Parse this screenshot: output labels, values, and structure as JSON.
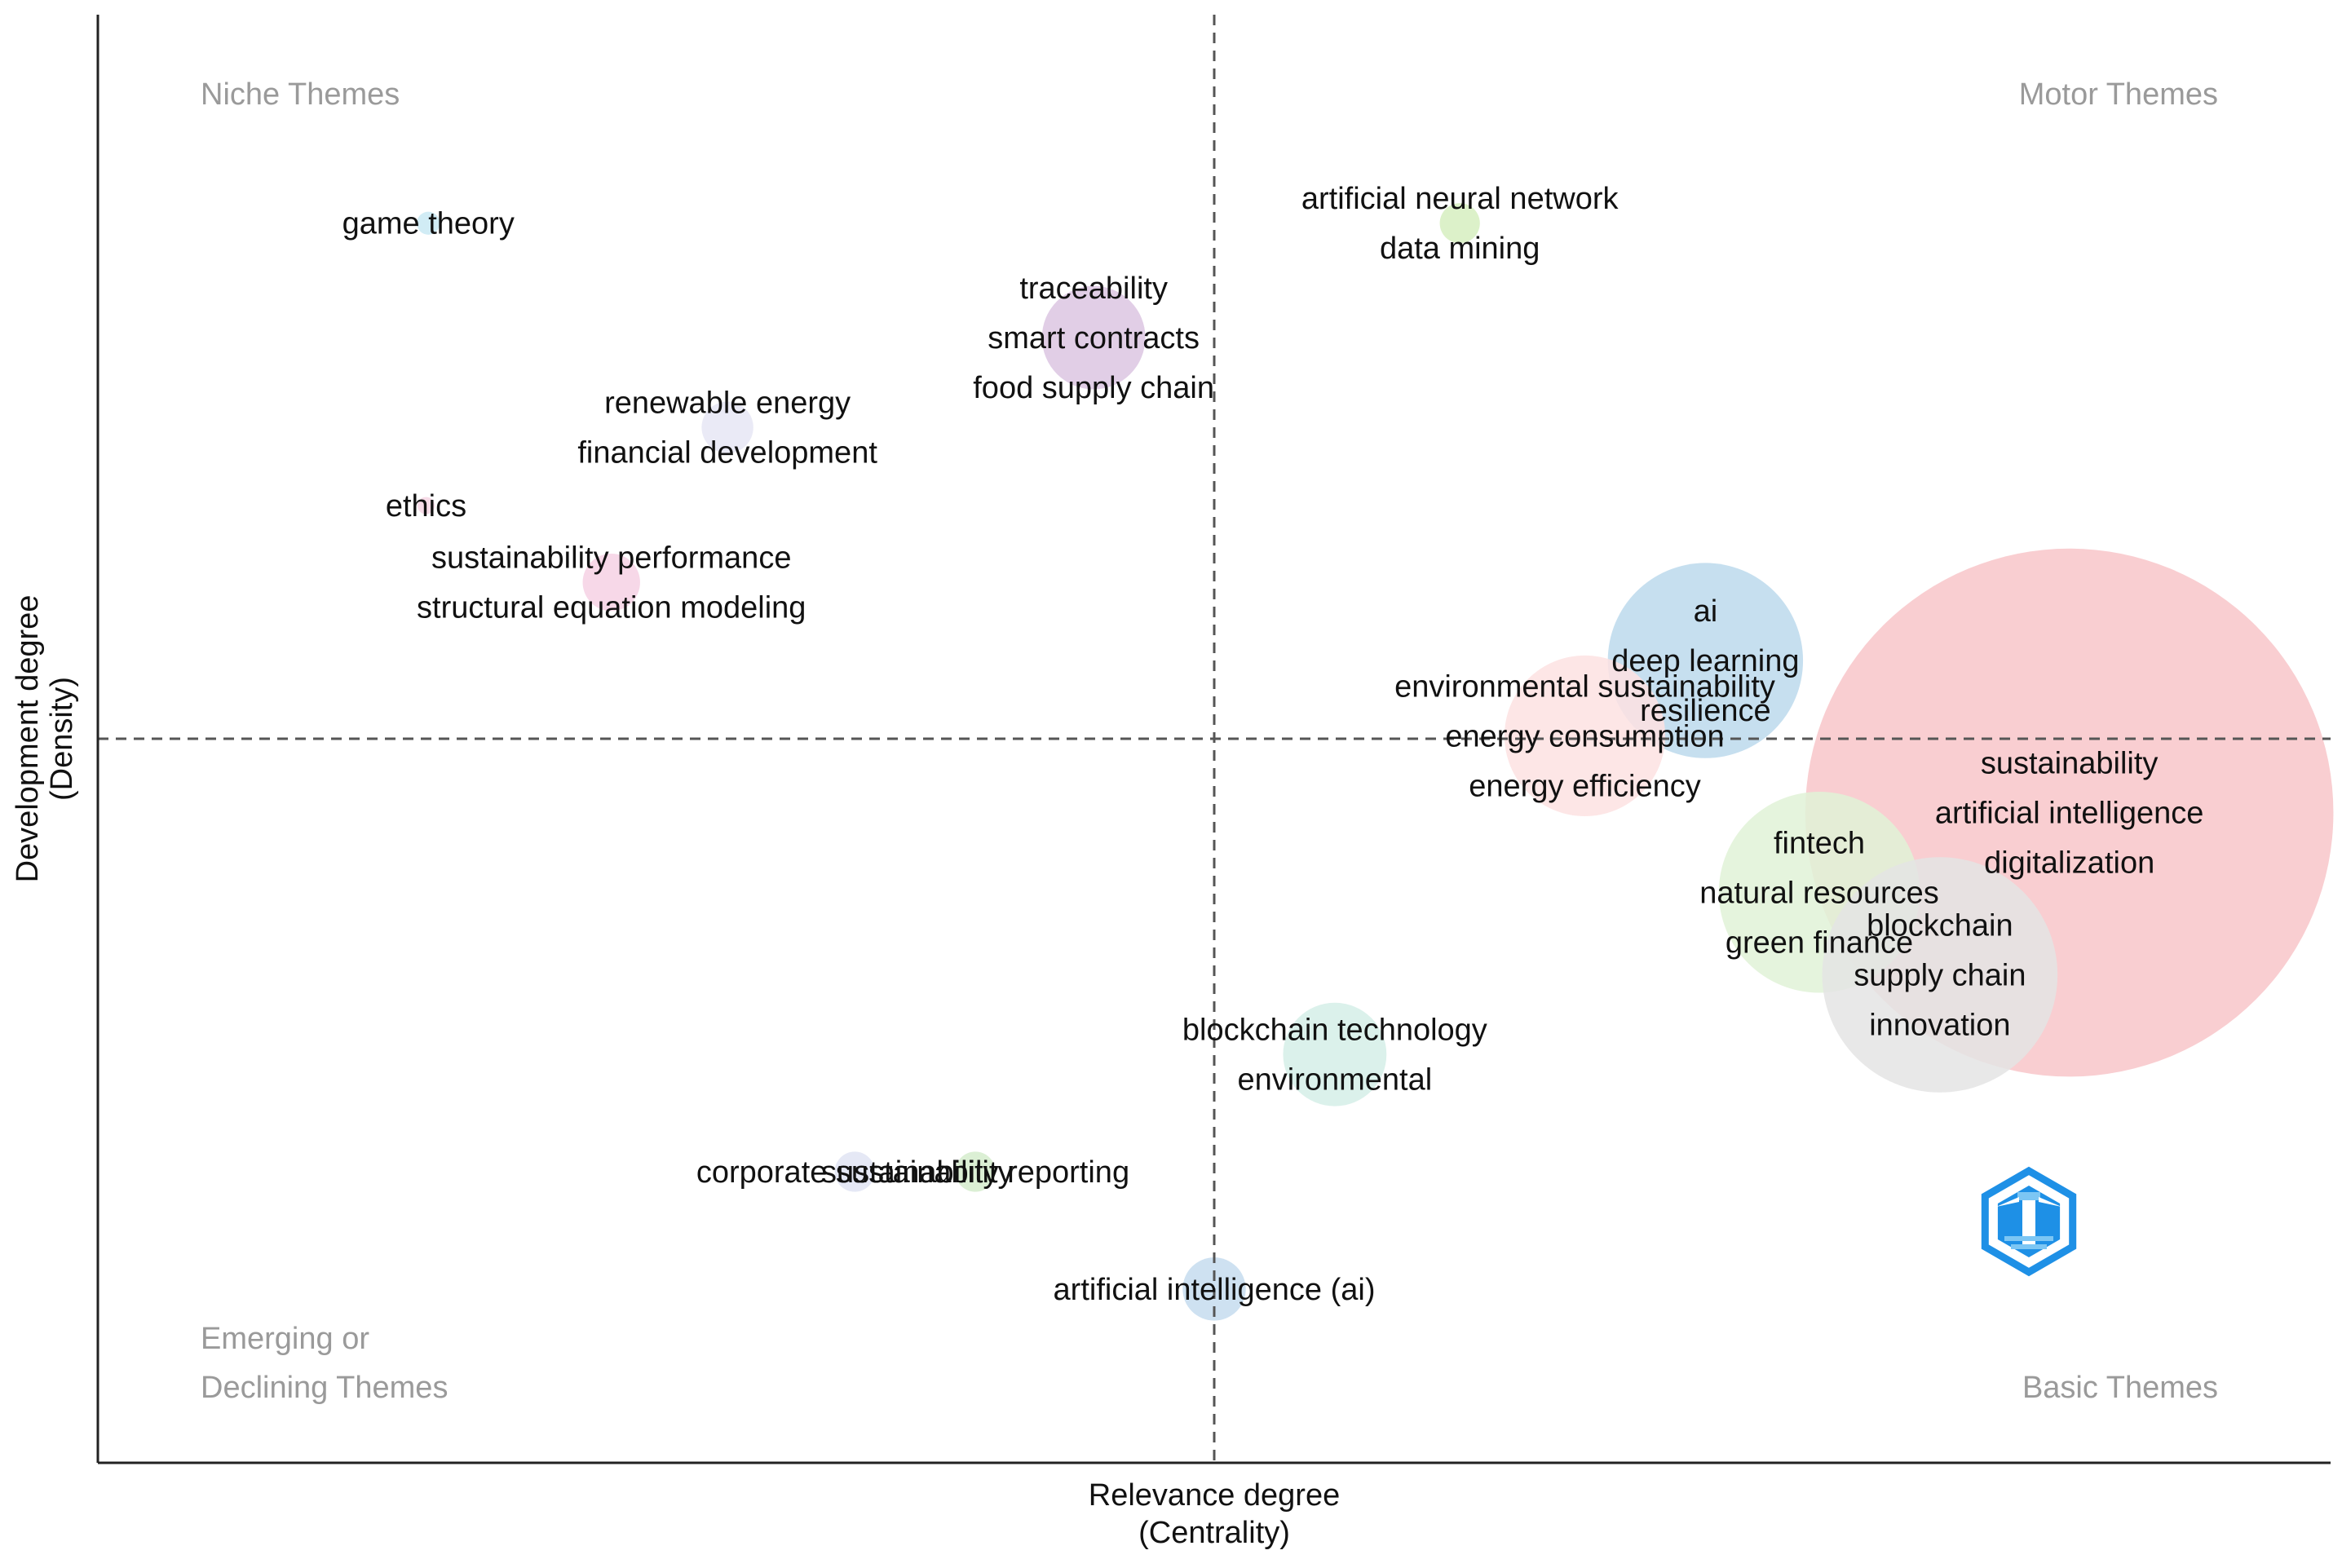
{
  "chart_data": {
    "type": "scatter",
    "subtype": "thematic-map",
    "xlabel": [
      "Relevance degree",
      "(Centrality)"
    ],
    "ylabel": [
      "Development degree",
      "(Density)"
    ],
    "xlim": [
      0,
      100
    ],
    "ylim": [
      0,
      100
    ],
    "divider_x": 50,
    "divider_y": 50,
    "grid": false,
    "quadrants": {
      "top_left": [
        "Niche Themes"
      ],
      "top_right": [
        "Motor Themes"
      ],
      "bottom_left": [
        "Emerging or",
        "Declining Themes"
      ],
      "bottom_right": [
        "Basic Themes"
      ]
    },
    "clusters": [
      {
        "id": "game-theory",
        "x": 14.8,
        "y": 85.6,
        "size": 0.4,
        "color": "#c9e9f3",
        "labels": [
          "game theory"
        ]
      },
      {
        "id": "artificial-neural-network",
        "x": 61.0,
        "y": 85.6,
        "size": 0.7,
        "color": "#d6efc0",
        "labels": [
          "artificial neural network",
          "data mining"
        ]
      },
      {
        "id": "traceability",
        "x": 44.6,
        "y": 77.7,
        "size": 1.8,
        "color": "#dcc6e2",
        "labels": [
          "traceability",
          "smart contracts",
          "food supply chain"
        ]
      },
      {
        "id": "renewable-energy",
        "x": 28.2,
        "y": 71.5,
        "size": 0.9,
        "color": "#e6e6f5",
        "labels": [
          "renewable energy",
          "financial development"
        ]
      },
      {
        "id": "ethics",
        "x": 14.7,
        "y": 66.1,
        "size": 0.3,
        "color": "#f6d6e4",
        "labels": [
          "ethics"
        ]
      },
      {
        "id": "sustainability-performance",
        "x": 23.0,
        "y": 60.8,
        "size": 1.0,
        "color": "#f6d1e4",
        "labels": [
          "sustainability performance",
          "structural equation modeling"
        ]
      },
      {
        "id": "ai",
        "x": 72.0,
        "y": 55.4,
        "size": 3.4,
        "color": "#bcd9ec",
        "labels": [
          "ai",
          "deep learning",
          "resilience"
        ]
      },
      {
        "id": "environmental-sustainability",
        "x": 66.6,
        "y": 50.2,
        "size": 2.8,
        "color": "#fde2e2",
        "labels": [
          "environmental sustainability",
          "energy consumption",
          "energy efficiency"
        ]
      },
      {
        "id": "sustainability",
        "x": 88.3,
        "y": 44.9,
        "size": 9.2,
        "color": "#f8c6c9",
        "labels": [
          "sustainability",
          "artificial intelligence",
          "digitalization"
        ]
      },
      {
        "id": "fintech",
        "x": 77.1,
        "y": 39.4,
        "size": 3.5,
        "color": "#e1f2d7",
        "labels": [
          "fintech",
          "natural resources",
          "green finance"
        ]
      },
      {
        "id": "blockchain",
        "x": 82.5,
        "y": 33.7,
        "size": 4.1,
        "color": "#e4e4e4",
        "labels": [
          "blockchain",
          "supply chain",
          "innovation"
        ]
      },
      {
        "id": "blockchain-technology",
        "x": 55.4,
        "y": 28.2,
        "size": 1.8,
        "color": "#d5efe8",
        "labels": [
          "blockchain technology",
          "environmental"
        ]
      },
      {
        "id": "corporate-sustainability",
        "x": 33.9,
        "y": 20.1,
        "size": 0.7,
        "color": "#e0e4f3",
        "labels": [
          "corporate sustainability"
        ]
      },
      {
        "id": "sustainability-reporting",
        "x": 39.3,
        "y": 20.1,
        "size": 0.7,
        "color": "#d5eccc",
        "labels": [
          "sustainability reporting"
        ]
      },
      {
        "id": "artificial-intelligence-ai",
        "x": 50.0,
        "y": 12.0,
        "size": 1.1,
        "color": "#c5dcee",
        "labels": [
          "artificial intelligence (ai)"
        ]
      }
    ]
  },
  "colors": {
    "axis": "#222222",
    "divider": "#555555",
    "logo_blue": "#1e90e6",
    "logo_light": "#7cc6f4"
  },
  "logo": {
    "icon": "lighthouse-hexagon-icon"
  }
}
